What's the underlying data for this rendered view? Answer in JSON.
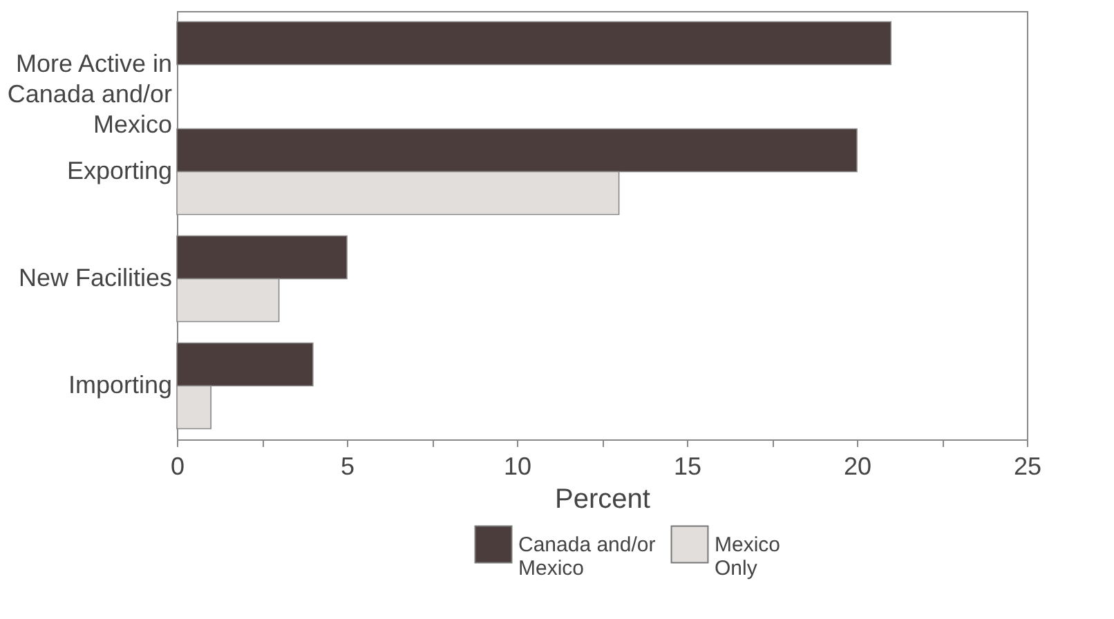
{
  "chart_data": {
    "type": "bar",
    "orientation": "horizontal",
    "xlabel": "Percent",
    "categories": [
      "More Active in Canada and/or Mexico",
      "Exporting",
      "New Facilities",
      "Importing"
    ],
    "series": [
      {
        "name": "Canada and/or Mexico",
        "color": "#4a3d3b",
        "values": [
          21,
          20,
          5,
          4
        ]
      },
      {
        "name": "Mexico Only",
        "color": "#e2dedb",
        "values": [
          null,
          13,
          3,
          1
        ]
      }
    ],
    "xlim": [
      0,
      25
    ],
    "xticks": [
      0,
      {
        "value": 2.5,
        "label": null
      },
      5,
      {
        "value": 7.5,
        "label": null
      },
      10,
      {
        "value": 12.5,
        "label": null
      },
      15,
      {
        "value": 17.5,
        "label": null
      },
      20,
      {
        "value": 22.5,
        "label": null
      },
      25
    ],
    "grid": false,
    "legend": "bottom"
  }
}
